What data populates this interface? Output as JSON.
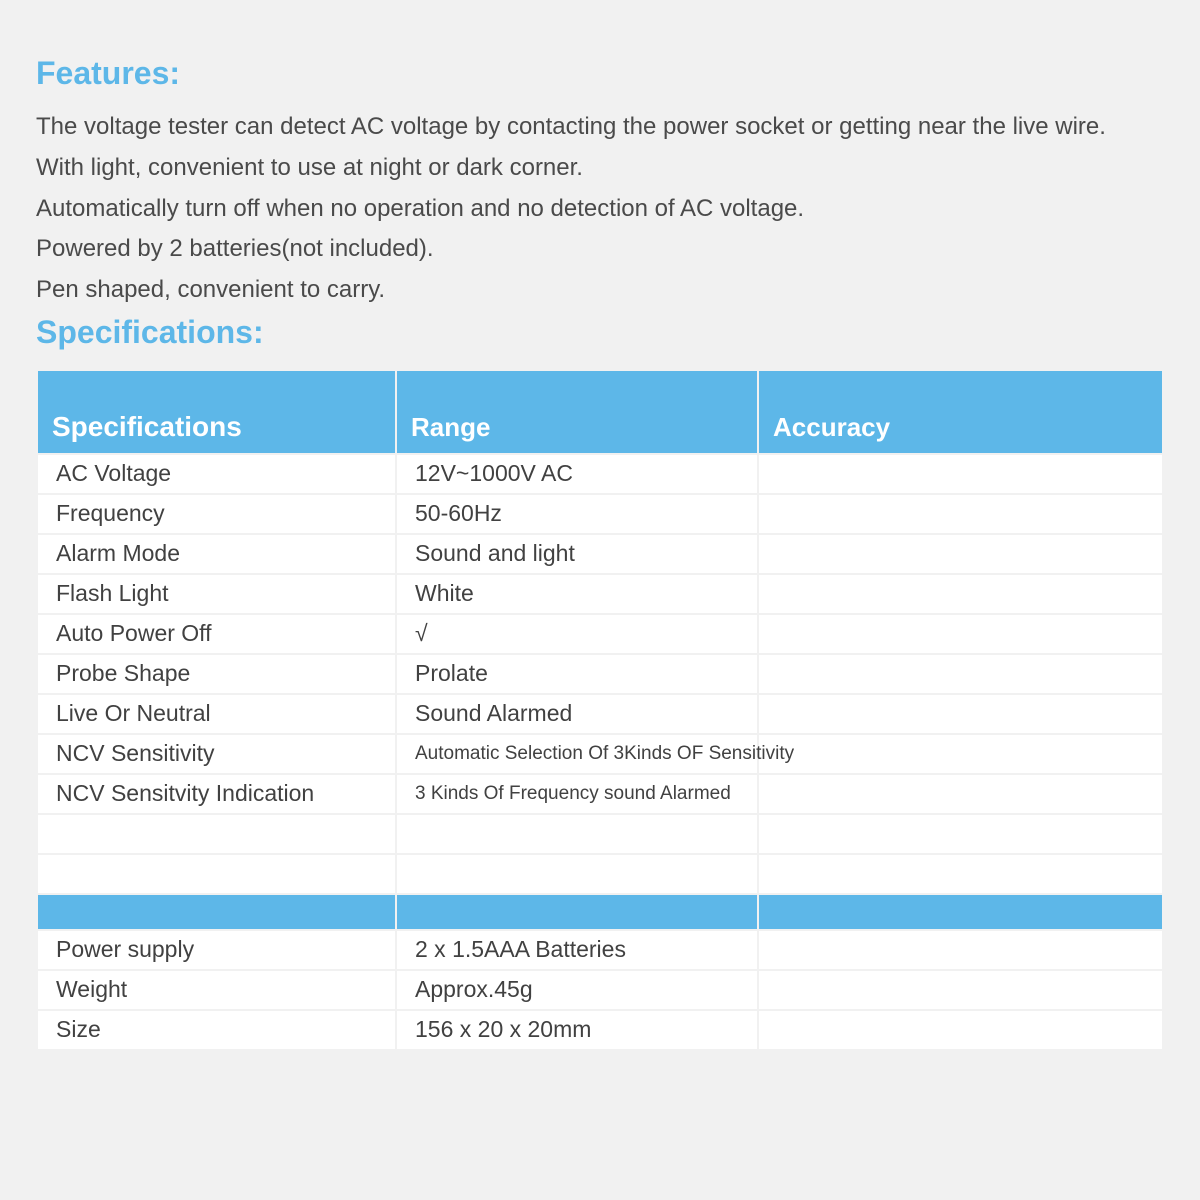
{
  "colors": {
    "accent": "#5db7e8",
    "page_bg": "#f1f1f1",
    "cell_bg": "#ffffff",
    "text": "#4a4a4a",
    "header_text": "#ffffff"
  },
  "features": {
    "title": "Features:",
    "lines": [
      "The voltage tester can detect AC voltage by contacting the power socket or getting near the live wire.",
      "With light, convenient to use at night or dark corner.",
      "Automatically turn off when no operation and no detection of AC voltage.",
      "Powered by 2 batteries(not included).",
      "Pen shaped, convenient to carry."
    ]
  },
  "specifications": {
    "title": "Specifications:",
    "columns": [
      "Specifications",
      "Range",
      "Accuracy"
    ],
    "rows": [
      {
        "spec": "AC Voltage",
        "range": "12V~1000V AC",
        "accuracy": ""
      },
      {
        "spec": "Frequency",
        "range": "50-60Hz",
        "accuracy": ""
      },
      {
        "spec": "Alarm Mode",
        "range": "Sound and light",
        "accuracy": ""
      },
      {
        "spec": "Flash Light",
        "range": "White",
        "accuracy": ""
      },
      {
        "spec": "Auto Power Off",
        "range": "√",
        "accuracy": ""
      },
      {
        "spec": "Probe Shape",
        "range": "Prolate",
        "accuracy": ""
      },
      {
        "spec": "Live Or Neutral",
        "range": "Sound Alarmed",
        "accuracy": ""
      },
      {
        "spec": "NCV Sensitivity",
        "range": "Automatic Selection Of 3Kinds OF Sensitivity",
        "accuracy": "",
        "small": true
      },
      {
        "spec": "NCV Sensitvity Indication",
        "range": "3 Kinds Of Frequency sound Alarmed",
        "accuracy": "",
        "small": true
      },
      {
        "spec": "",
        "range": "",
        "accuracy": ""
      },
      {
        "spec": "",
        "range": "",
        "accuracy": ""
      }
    ],
    "rows2": [
      {
        "spec": "Power supply",
        "range": "2 x 1.5AAA Batteries",
        "accuracy": ""
      },
      {
        "spec": "Weight",
        "range": "Approx.45g",
        "accuracy": ""
      },
      {
        "spec": "Size",
        "range": "156 x 20 x 20mm",
        "accuracy": ""
      }
    ]
  }
}
